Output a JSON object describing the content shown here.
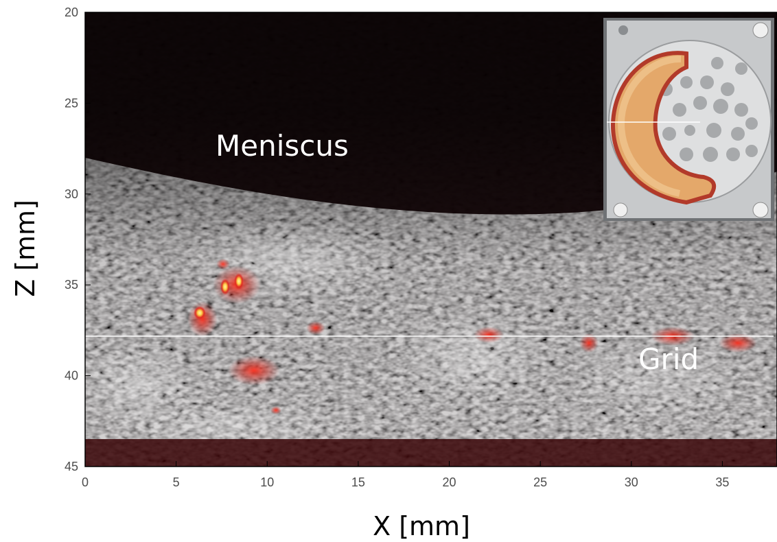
{
  "figure": {
    "xlabel": "X [mm]",
    "ylabel": "Z [mm]",
    "xlim": [
      0,
      38
    ],
    "ylim": [
      20,
      45
    ],
    "x_ticks": [
      "0",
      "5",
      "10",
      "15",
      "20",
      "25",
      "30",
      "35"
    ],
    "y_ticks": [
      "20",
      "25",
      "30",
      "35",
      "40",
      "45"
    ],
    "annotations": {
      "meniscus": "Meniscus",
      "grid": "Grid"
    },
    "overlay_colors": {
      "background": "#140406",
      "speckle": "#d8d8d8",
      "signal": "#e0281c",
      "hotspot": "#ffe27a"
    }
  }
}
